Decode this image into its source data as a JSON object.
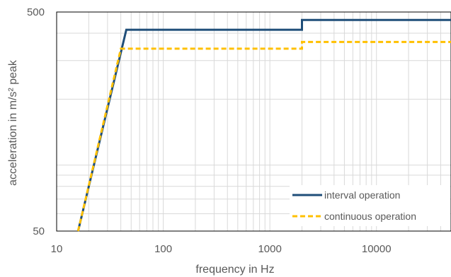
{
  "chart_data": {
    "type": "line",
    "xscale": "log",
    "yscale": "log",
    "xlim": [
      10,
      50000
    ],
    "ylim": [
      50,
      500
    ],
    "xticks": [
      "10",
      "100",
      "1000",
      "10000"
    ],
    "xtick_values": [
      10,
      100,
      1000,
      10000
    ],
    "yticks": [
      "50",
      "500"
    ],
    "ytick_values": [
      50,
      500
    ],
    "xlabel": "frequency in Hz",
    "ylabel": "acceleration in m/s² peak",
    "grid": true,
    "legend_position": "bottom-right",
    "series": [
      {
        "name": "interval operation",
        "color": "#1f4e79",
        "style": "solid",
        "x": [
          15.9,
          45,
          2000,
          2000,
          50000
        ],
        "y": [
          50,
          415,
          415,
          460,
          460
        ]
      },
      {
        "name": "continuous operation",
        "color": "#ffc000",
        "style": "dashed",
        "x": [
          15.9,
          40,
          2000,
          2000,
          50000
        ],
        "y": [
          50,
          340,
          340,
          365,
          365
        ]
      }
    ]
  }
}
